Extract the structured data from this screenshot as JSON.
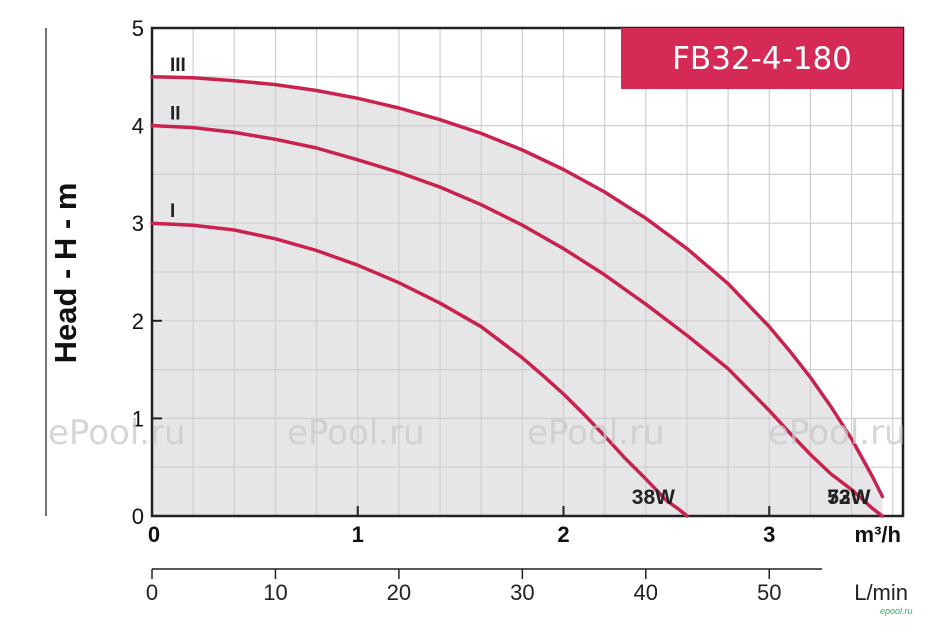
{
  "chart_data": {
    "type": "line",
    "title": "FB32-4-180",
    "ylabel": "Head - H - m",
    "xlabel_primary_unit": "m³/h",
    "xlabel_secondary_unit": "L/min",
    "xlim": [
      0,
      3.65
    ],
    "ylim": [
      0,
      5
    ],
    "x_ticks": [
      "0",
      "1",
      "2",
      "3"
    ],
    "y_ticks": [
      "0",
      "1",
      "2",
      "3",
      "4",
      "5"
    ],
    "x2_ticks": [
      "0",
      "10",
      "20",
      "30",
      "40",
      "50"
    ],
    "x2_tick_values": [
      0,
      10,
      20,
      30,
      40,
      50
    ],
    "x2_scale_lpm_per_m3h": 16.667,
    "grid": true,
    "series": [
      {
        "name": "I",
        "power_label": "38W",
        "x": [
          0,
          0.2,
          0.4,
          0.6,
          0.8,
          1.0,
          1.2,
          1.4,
          1.6,
          1.8,
          1.9,
          2.0,
          2.1,
          2.2,
          2.3,
          2.4,
          2.5,
          2.56,
          2.6
        ],
        "y": [
          3.0,
          2.98,
          2.93,
          2.84,
          2.72,
          2.57,
          2.39,
          2.18,
          1.94,
          1.62,
          1.44,
          1.25,
          1.04,
          0.82,
          0.59,
          0.38,
          0.16,
          0.07,
          0
        ]
      },
      {
        "name": "II",
        "power_label": "53W",
        "x": [
          0,
          0.2,
          0.4,
          0.6,
          0.8,
          1.0,
          1.2,
          1.4,
          1.6,
          1.8,
          2.0,
          2.2,
          2.4,
          2.6,
          2.8,
          3.0,
          3.1,
          3.2,
          3.3,
          3.4,
          3.5,
          3.55
        ],
        "y": [
          4.0,
          3.98,
          3.93,
          3.86,
          3.77,
          3.65,
          3.52,
          3.37,
          3.19,
          2.98,
          2.74,
          2.47,
          2.17,
          1.85,
          1.51,
          1.08,
          0.85,
          0.63,
          0.43,
          0.27,
          0.08,
          0
        ]
      },
      {
        "name": "III",
        "power_label": "72W",
        "x": [
          0,
          0.2,
          0.4,
          0.6,
          0.8,
          1.0,
          1.2,
          1.4,
          1.6,
          1.8,
          2.0,
          2.2,
          2.4,
          2.6,
          2.8,
          3.0,
          3.1,
          3.2,
          3.3,
          3.4,
          3.5,
          3.55
        ],
        "y": [
          4.5,
          4.49,
          4.46,
          4.42,
          4.36,
          4.28,
          4.18,
          4.06,
          3.92,
          3.75,
          3.55,
          3.32,
          3.05,
          2.74,
          2.38,
          1.94,
          1.69,
          1.42,
          1.12,
          0.79,
          0.41,
          0.2
        ]
      }
    ],
    "colors": {
      "curve": "#c8234f",
      "fill": "#e6e6e8",
      "grid": "#cfcfd2",
      "title_bg": "#d42a55"
    }
  },
  "watermark": "ePool.ru",
  "brand_mark": "epool.ru"
}
